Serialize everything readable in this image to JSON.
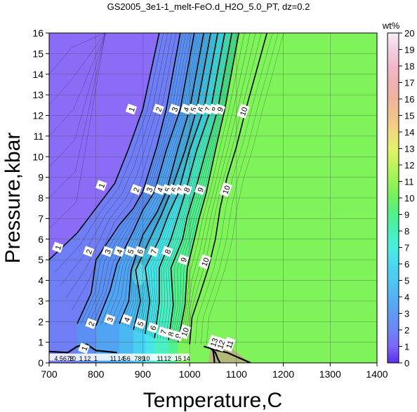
{
  "chart_data": {
    "type": "heatmap",
    "title": "GS2005_3e1-1_melt-FeO.d_H2O_5.0_PT, dz=0.2",
    "xlabel": "Temperature,C",
    "ylabel": "Pressure,kbar",
    "xlim": [
      700,
      1400
    ],
    "ylim": [
      0,
      16
    ],
    "xticks": [
      700,
      800,
      900,
      1000,
      1100,
      1200,
      1300,
      1400
    ],
    "yticks": [
      0,
      1,
      2,
      3,
      4,
      5,
      6,
      7,
      8,
      9,
      10,
      11,
      12,
      13,
      14,
      15,
      16
    ],
    "grid": true,
    "colorbar": {
      "label": "wt%",
      "min": 0,
      "max": 20,
      "ticks": [
        0,
        1,
        2,
        3,
        4,
        5,
        6,
        7,
        8,
        9,
        10,
        11,
        12,
        13,
        14,
        15,
        16,
        17,
        18,
        19,
        20
      ]
    },
    "contour_lines": [
      {
        "level": 1,
        "points": [
          [
            700,
            5.0
          ],
          [
            760,
            6.3
          ],
          [
            800,
            7.5
          ],
          [
            840,
            8.7
          ],
          [
            870,
            10.4
          ],
          [
            900,
            12.3
          ],
          [
            935,
            16
          ]
        ]
      },
      {
        "level": 2,
        "points": [
          [
            760,
            1.9
          ],
          [
            790,
            3.4
          ],
          [
            800,
            5.0
          ],
          [
            850,
            6.7
          ],
          [
            880,
            7.5
          ],
          [
            900,
            8.3
          ],
          [
            930,
            10.5
          ],
          [
            950,
            12.3
          ],
          [
            980,
            16
          ]
        ]
      },
      {
        "level": 3,
        "points": [
          [
            800,
            1.8
          ],
          [
            830,
            3.5
          ],
          [
            845,
            4.8
          ],
          [
            880,
            6.4
          ],
          [
            900,
            7.4
          ],
          [
            925,
            8.3
          ],
          [
            950,
            10.3
          ],
          [
            980,
            12.3
          ],
          [
            1010,
            16
          ]
        ]
      },
      {
        "level": 4,
        "points": [
          [
            850,
            1.9
          ],
          [
            870,
            3.0
          ],
          [
            875,
            4.5
          ],
          [
            900,
            6.2
          ],
          [
            930,
            7.3
          ],
          [
            950,
            8.3
          ],
          [
            975,
            10.4
          ],
          [
            1000,
            12.3
          ],
          [
            1030,
            16
          ]
        ]
      },
      {
        "level": 5,
        "points": [
          [
            880,
            1.6
          ],
          [
            895,
            3.0
          ],
          [
            885,
            4.5
          ],
          [
            915,
            6.0
          ],
          [
            940,
            7.2
          ],
          [
            960,
            8.3
          ],
          [
            990,
            10.3
          ],
          [
            1015,
            12.3
          ],
          [
            1045,
            16
          ]
        ]
      },
      {
        "level": 6,
        "points": [
          [
            905,
            1.4
          ],
          [
            915,
            3.0
          ],
          [
            905,
            4.6
          ],
          [
            935,
            6.0
          ],
          [
            955,
            7.2
          ],
          [
            975,
            8.2
          ],
          [
            1000,
            10.3
          ],
          [
            1030,
            12.3
          ],
          [
            1060,
            16
          ]
        ]
      },
      {
        "level": 7,
        "points": [
          [
            925,
            1.2
          ],
          [
            935,
            2.9
          ],
          [
            935,
            4.6
          ],
          [
            960,
            6.0
          ],
          [
            975,
            7.1
          ],
          [
            990,
            8.2
          ],
          [
            1015,
            10.3
          ],
          [
            1045,
            12.3
          ],
          [
            1075,
            16
          ]
        ]
      },
      {
        "level": 8,
        "points": [
          [
            955,
            1.1
          ],
          [
            965,
            2.8
          ],
          [
            960,
            4.6
          ],
          [
            985,
            6.0
          ],
          [
            995,
            7.1
          ],
          [
            1010,
            8.2
          ],
          [
            1035,
            10.3
          ],
          [
            1060,
            12.3
          ],
          [
            1090,
            16
          ]
        ]
      },
      {
        "level": 9,
        "points": [
          [
            975,
            1.0
          ],
          [
            990,
            2.8
          ],
          [
            995,
            4.6
          ],
          [
            1010,
            6.0
          ],
          [
            1020,
            7.0
          ],
          [
            1035,
            8.2
          ],
          [
            1055,
            10.3
          ],
          [
            1075,
            12.3
          ],
          [
            1105,
            16
          ]
        ]
      },
      {
        "level": 10,
        "points": [
          [
            1000,
            0.9
          ],
          [
            1005,
            2.2
          ],
          [
            1020,
            3.2
          ],
          [
            1040,
            4.6
          ],
          [
            1055,
            6.0
          ],
          [
            1065,
            7.5
          ],
          [
            1080,
            9.0
          ],
          [
            1100,
            10.5
          ],
          [
            1120,
            12.3
          ],
          [
            1165,
            16
          ]
        ]
      },
      {
        "level": 11,
        "points": [
          [
            1030,
            0.8
          ],
          [
            1060,
            0.6
          ],
          [
            1080,
            0.5
          ],
          [
            1100,
            0.3
          ],
          [
            1130,
            0.0
          ]
        ]
      },
      {
        "level": 12,
        "points": [
          [
            1040,
            0.8
          ],
          [
            1055,
            0.5
          ],
          [
            1060,
            0.2
          ],
          [
            1065,
            0.0
          ]
        ]
      },
      {
        "level": 13,
        "points": [
          [
            1045,
            0.9
          ],
          [
            1050,
            0.6
          ],
          [
            1052,
            0.3
          ],
          [
            1053,
            0.0
          ]
        ]
      }
    ],
    "contour_labels": [
      {
        "text": "1",
        "x": 876,
        "y": 12.3
      },
      {
        "text": "2",
        "x": 934,
        "y": 12.3
      },
      {
        "text": "3",
        "x": 968,
        "y": 12.3
      },
      {
        "text": "4",
        "x": 993,
        "y": 12.3
      },
      {
        "text": "5",
        "x": 1008,
        "y": 12.3
      },
      {
        "text": "6",
        "x": 1024,
        "y": 12.3
      },
      {
        "text": "7",
        "x": 1039,
        "y": 12.3
      },
      {
        "text": "8",
        "x": 1053,
        "y": 12.3
      },
      {
        "text": "9",
        "x": 1065,
        "y": 12.3
      },
      {
        "text": "10",
        "x": 1115,
        "y": 12.2
      },
      {
        "text": "1",
        "x": 812,
        "y": 8.6
      },
      {
        "text": "2",
        "x": 886,
        "y": 8.4
      },
      {
        "text": "3",
        "x": 914,
        "y": 8.4
      },
      {
        "text": "4",
        "x": 937,
        "y": 8.4
      },
      {
        "text": "5",
        "x": 953,
        "y": 8.4
      },
      {
        "text": "6",
        "x": 967,
        "y": 8.4
      },
      {
        "text": "7",
        "x": 980,
        "y": 8.4
      },
      {
        "text": "8",
        "x": 994,
        "y": 8.4
      },
      {
        "text": "9",
        "x": 1023,
        "y": 8.4
      },
      {
        "text": "10",
        "x": 1078,
        "y": 8.4
      },
      {
        "text": "1",
        "x": 719,
        "y": 5.6
      },
      {
        "text": "2",
        "x": 785,
        "y": 5.4
      },
      {
        "text": "3",
        "x": 825,
        "y": 5.4
      },
      {
        "text": "4",
        "x": 850,
        "y": 5.4
      },
      {
        "text": "5",
        "x": 874,
        "y": 5.4
      },
      {
        "text": "6",
        "x": 894,
        "y": 5.4
      },
      {
        "text": "7",
        "x": 923,
        "y": 5.4
      },
      {
        "text": "8",
        "x": 953,
        "y": 5.4
      },
      {
        "text": "9",
        "x": 987,
        "y": 5.0
      },
      {
        "text": "10",
        "x": 1033,
        "y": 4.9
      },
      {
        "text": "2",
        "x": 790,
        "y": 1.9
      },
      {
        "text": "3",
        "x": 830,
        "y": 2.1
      },
      {
        "text": "4",
        "x": 866,
        "y": 2.1
      },
      {
        "text": "5",
        "x": 895,
        "y": 1.9
      },
      {
        "text": "6",
        "x": 922,
        "y": 1.7
      },
      {
        "text": "7",
        "x": 944,
        "y": 1.5
      },
      {
        "text": "8",
        "x": 960,
        "y": 1.4
      },
      {
        "text": "9",
        "x": 975,
        "y": 1.3
      },
      {
        "text": "10",
        "x": 990,
        "y": 1.5
      },
      {
        "text": "11",
        "x": 1085,
        "y": 0.9
      },
      {
        "text": "12",
        "x": 1067,
        "y": 0.9
      },
      {
        "text": "13",
        "x": 1052,
        "y": 1.0
      },
      {
        "text": "1",
        "x": 775,
        "y": 0.7
      }
    ],
    "bottom_label_strip": [
      {
        "text": "4.5678",
        "x": 711
      },
      {
        "text": "10",
        "x": 742
      },
      {
        "text": "1",
        "x": 764
      },
      {
        "text": "12",
        "x": 774
      },
      {
        "text": "1",
        "x": 796
      },
      {
        "text": "11",
        "x": 830
      },
      {
        "text": "14",
        "x": 846
      },
      {
        "text": "5",
        "x": 858
      },
      {
        "text": "6",
        "x": 866
      },
      {
        "text": "789",
        "x": 882
      },
      {
        "text": "10",
        "x": 900
      },
      {
        "text": "11",
        "x": 930
      },
      {
        "text": "12",
        "x": 945
      },
      {
        "text": "15",
        "x": 968
      },
      {
        "text": "14",
        "x": 986
      }
    ],
    "fill_regions": [
      {
        "value": 1,
        "color": "#8a6cf7"
      },
      {
        "value": 2,
        "color": "#6f7ef5"
      },
      {
        "value": 3,
        "color": "#5c8ff4"
      },
      {
        "value": 4,
        "color": "#50a4f3"
      },
      {
        "value": 5,
        "color": "#4cb8f2"
      },
      {
        "value": 6,
        "color": "#49d0f0"
      },
      {
        "value": 7,
        "color": "#46e6ea"
      },
      {
        "value": 8,
        "color": "#4aefc4"
      },
      {
        "value": 9,
        "color": "#52f08e"
      },
      {
        "value": 10,
        "color": "#7ff35a"
      },
      {
        "value": 11,
        "color": "#9ef452"
      }
    ]
  },
  "colors": {
    "background": "#ffffff",
    "grid": "#444444",
    "contour_major": "#000000",
    "contour_minor": "#000000",
    "melt_field": "#7ff35a",
    "low_field": "#8a6cf7"
  },
  "colorbar_gradient": [
    [
      0,
      "#5a2ff0"
    ],
    [
      1,
      "#7a67f6"
    ],
    [
      2,
      "#6d84f5"
    ],
    [
      3,
      "#5d9df4"
    ],
    [
      4,
      "#55b2f3"
    ],
    [
      5,
      "#4fc7f2"
    ],
    [
      6,
      "#4ad9ee"
    ],
    [
      7,
      "#47eee0"
    ],
    [
      8,
      "#49f0b6"
    ],
    [
      9,
      "#51f08a"
    ],
    [
      10,
      "#6ff25e"
    ],
    [
      11,
      "#96f356"
    ],
    [
      12,
      "#bff35c"
    ],
    [
      13,
      "#e2f26a"
    ],
    [
      14,
      "#f1d87c"
    ],
    [
      15,
      "#f1c28b"
    ],
    [
      16,
      "#f0b49c"
    ],
    [
      17,
      "#f0b1b1"
    ],
    [
      18,
      "#f0b9cc"
    ],
    [
      19,
      "#f1cfe3"
    ],
    [
      20,
      "#f7eef6"
    ]
  ]
}
